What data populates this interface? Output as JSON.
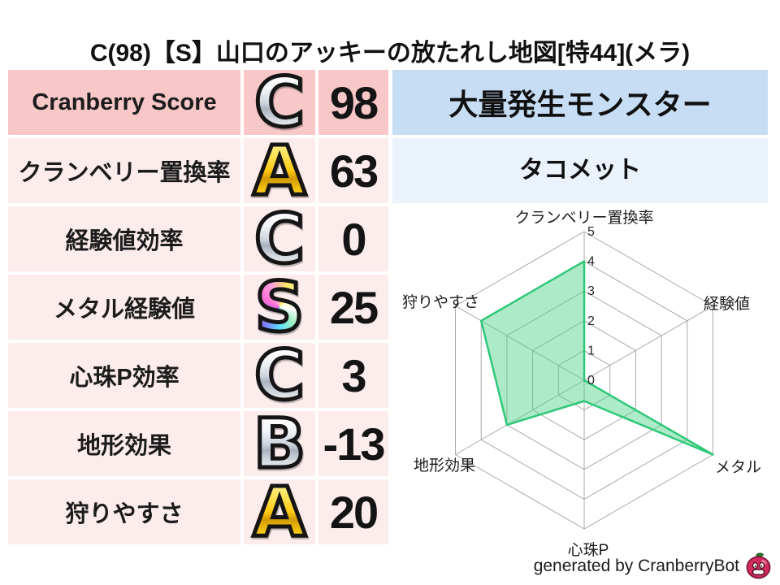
{
  "title": "C(98)【S】山口のアッキーの放たれし地図[特44](メラ)",
  "stats_table": {
    "rows": [
      {
        "label": "Cranberry Score",
        "grade": "C",
        "grade_style": "silver",
        "value": "98",
        "highlight": true
      },
      {
        "label": "クランベリー置換率",
        "grade": "A",
        "grade_style": "gold",
        "value": "63",
        "highlight": false
      },
      {
        "label": "経験値効率",
        "grade": "C",
        "grade_style": "silver",
        "value": "0",
        "highlight": false
      },
      {
        "label": "メタル経験値",
        "grade": "S",
        "grade_style": "rainbow",
        "value": "25",
        "highlight": false
      },
      {
        "label": "心珠P効率",
        "grade": "C",
        "grade_style": "silver",
        "value": "3",
        "highlight": false
      },
      {
        "label": "地形効果",
        "grade": "B",
        "grade_style": "silver",
        "value": "-13",
        "highlight": false
      },
      {
        "label": "狩りやすさ",
        "grade": "A",
        "grade_style": "gold",
        "value": "20",
        "highlight": false
      }
    ]
  },
  "monster_panel": {
    "header": "大量発生モンスター",
    "name": "タコメット"
  },
  "chart_data": {
    "type": "radar",
    "categories": [
      "クランベリー置換率",
      "経験値",
      "メタル",
      "心珠P",
      "地形効果",
      "狩りやすさ"
    ],
    "values": [
      4,
      0,
      5,
      0.7,
      3,
      4
    ],
    "rmax": 5,
    "ticks": [
      0,
      1,
      2,
      3,
      4,
      5
    ],
    "grid": true,
    "legend": "none",
    "series_color": "#2fc878",
    "fill_color": "rgba(74,208,134,0.45)",
    "grid_color": "#a9a9a9",
    "tick_color": "#262626"
  },
  "footer": {
    "credit": "generated by CranberryBot",
    "icon": "cranberry-bot-icon"
  },
  "colors": {
    "row_highlight_pink": "#f8c7c7",
    "row_pink": "#fdecec",
    "header_blue": "#c7ddf4",
    "name_blue": "#eaf2fc",
    "grade_silver": "#c9d2dc",
    "grade_gold": "#ffc812",
    "berry_red": "#d22a5c",
    "leaf_green": "#2e7d33"
  }
}
